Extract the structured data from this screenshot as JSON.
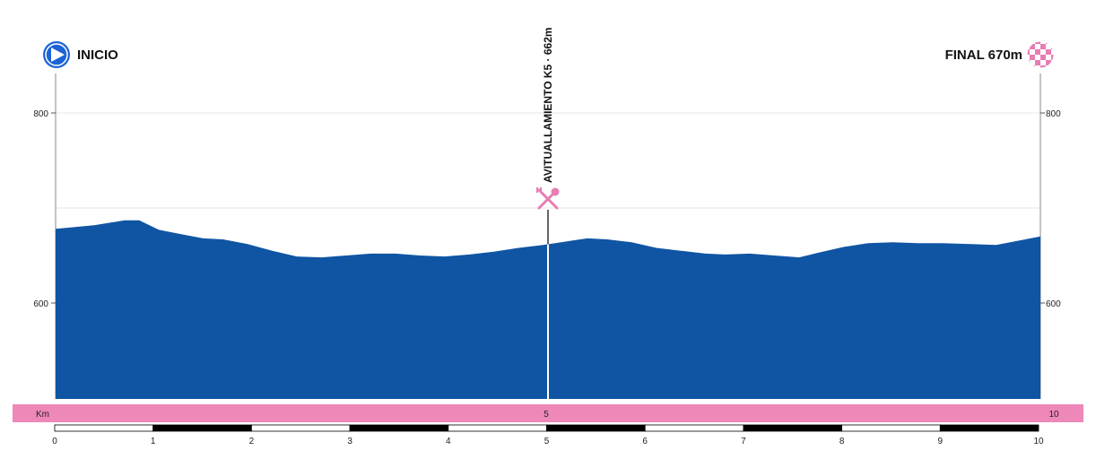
{
  "chart_data": {
    "type": "area",
    "start_label": "INICIO",
    "finish_label": "FINAL 670m",
    "annotation": {
      "label": "AVITUALLAMIENTO K5 · 662m",
      "km": 5,
      "icon": "fork-knife-icon"
    },
    "x": [
      0,
      0.4,
      0.7,
      0.85,
      1.05,
      1.3,
      1.5,
      1.7,
      1.95,
      2.2,
      2.45,
      2.7,
      2.95,
      3.2,
      3.45,
      3.7,
      3.95,
      4.2,
      4.45,
      4.7,
      4.95,
      5.2,
      5.4,
      5.6,
      5.85,
      6.1,
      6.35,
      6.6,
      6.8,
      7.05,
      7.3,
      7.55,
      7.75,
      8.0,
      8.25,
      8.5,
      8.75,
      9.0,
      9.3,
      9.55,
      9.8,
      10.0
    ],
    "y": [
      678,
      682,
      687,
      687,
      677,
      672,
      668,
      667,
      662,
      655,
      649,
      648,
      650,
      652,
      652,
      650,
      649,
      651,
      654,
      658,
      661,
      665,
      668,
      667,
      664,
      658,
      655,
      652,
      651,
      652,
      650,
      648,
      653,
      659,
      663,
      664,
      663,
      663,
      662,
      661,
      666,
      670
    ],
    "xlim": [
      0,
      10
    ],
    "ylim": [
      500,
      860
    ],
    "y_ticks": [
      600,
      800
    ],
    "x_ticks": [
      0,
      1,
      2,
      3,
      4,
      5,
      6,
      7,
      8,
      9,
      10
    ],
    "km_band": {
      "label": "Km",
      "mid": "5",
      "end": "10"
    },
    "grid": true,
    "colors": {
      "fill": "#1055a3",
      "band": "#ee88b8",
      "pink_icon": "#e77db4",
      "start_icon": "#1b63d6"
    }
  }
}
